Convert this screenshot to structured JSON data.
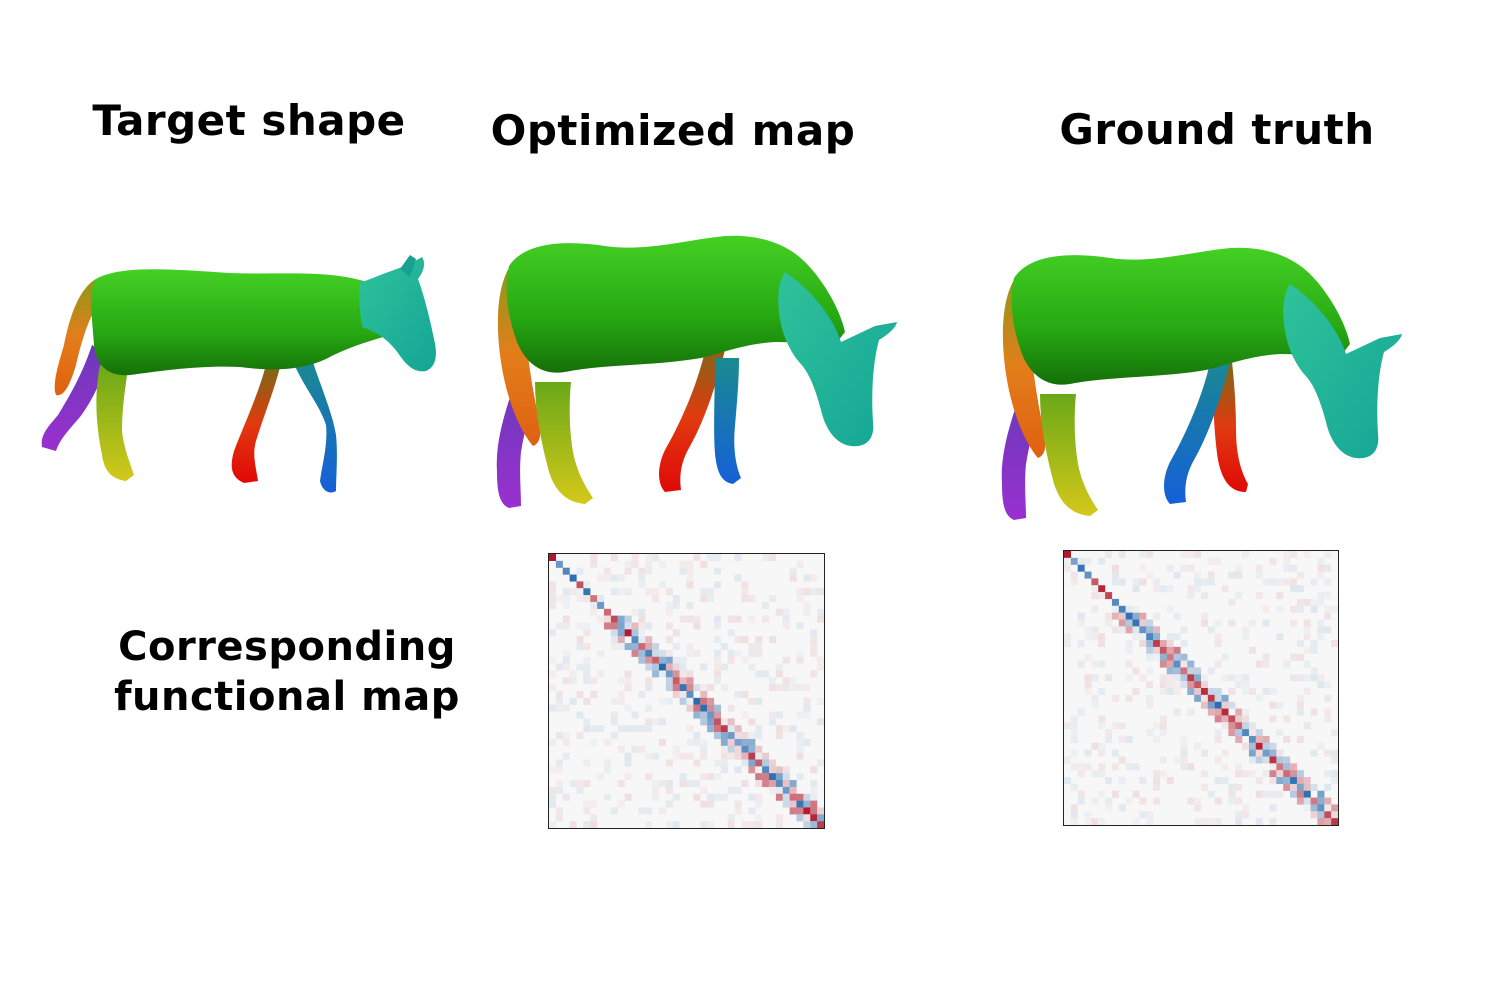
{
  "titles": {
    "target": "Target shape",
    "optimized": "Optimized map",
    "ground_truth": "Ground truth"
  },
  "row_label": {
    "line1": "Corresponding",
    "line2": "functional map"
  },
  "colors": {
    "body_green": "#2fb51a",
    "head_teal": "#1fb3a0",
    "tail_orange": "#e8781a",
    "leg_purple": "#8a2bc8",
    "leg_yellow": "#c8c418",
    "leg_red": "#e01010",
    "leg_blue": "#1a7ad8",
    "matrix_red": "#b2182b",
    "matrix_blue": "#2166ac",
    "matrix_bg": "#f7f7f7"
  },
  "icons": [
    "horse-mesh-target",
    "horse-mesh-optimized",
    "horse-mesh-ground-truth"
  ]
}
